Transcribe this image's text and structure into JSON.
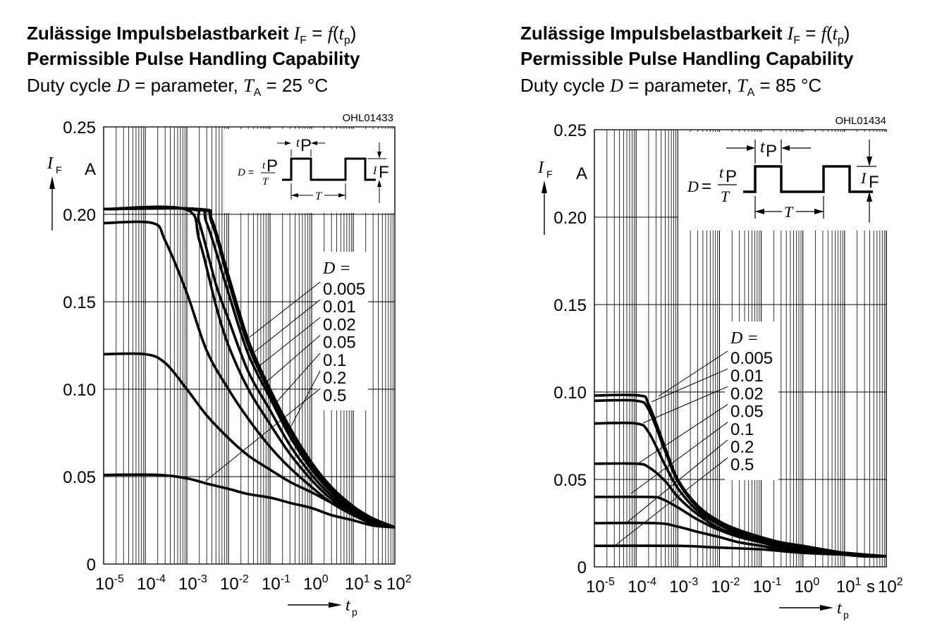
{
  "colors": {
    "line": "#000000",
    "grid": "#000000",
    "background": "#ffffff"
  },
  "charts": [
    {
      "title_de_bold": "Zulässige Impulsbelastbarkeit",
      "title_de_rel": "I",
      "title_de_rel_sub": "F",
      "title_de_eq": " = ",
      "title_de_fn": "f",
      "title_de_arg": "t",
      "title_de_arg_sub": "p",
      "title_en": "Permissible Pulse Handling Capability",
      "cond_prefix": "Duty cycle ",
      "cond_d": "D",
      "cond_mid": " = parameter, ",
      "cond_t": "T",
      "cond_t_sub": "A",
      "cond_value": " = 25 °C",
      "code": "OHL01433",
      "ylabel": "I",
      "ylabel_sub": "F",
      "yunit": "A",
      "xlabel": "t",
      "xlabel_sub": "p",
      "xunit": "s",
      "legend_title": "D =",
      "inset": {
        "d_label": "D",
        "eq": "=",
        "num": "t",
        "num_sub": "P",
        "den": "T",
        "tp": "t",
        "tp_sub": "P",
        "T": "T",
        "if": "I",
        "if_sub": "F"
      }
    },
    {
      "title_de_bold": "Zulässige Impulsbelastbarkeit",
      "title_de_rel": "I",
      "title_de_rel_sub": "F",
      "title_de_eq": " = ",
      "title_de_fn": "f",
      "title_de_arg": "t",
      "title_de_arg_sub": "p",
      "title_en": "Permissible Pulse Handling Capability",
      "cond_prefix": "Duty cycle ",
      "cond_d": "D",
      "cond_mid": " = parameter, ",
      "cond_t": "T",
      "cond_t_sub": "A",
      "cond_value": " = 85 °C",
      "code": "OHL01434",
      "ylabel": "I",
      "ylabel_sub": "F",
      "yunit": "A",
      "xlabel": "t",
      "xlabel_sub": "p",
      "xunit": "s",
      "legend_title": "D =",
      "inset": {
        "d_label": "D",
        "eq": "=",
        "num": "t",
        "num_sub": "P",
        "den": "T",
        "tp": "t",
        "tp_sub": "P",
        "T": "T",
        "if": "I",
        "if_sub": "F"
      }
    }
  ],
  "chart_data": [
    {
      "type": "line",
      "x_scale": "log",
      "xlim": [
        1e-05,
        100
      ],
      "ylim": [
        0,
        0.25
      ],
      "x_ticks": [
        "10-5",
        "10-4",
        "10-3",
        "10-2",
        "10-1",
        "100",
        "101",
        "102"
      ],
      "y_ticks": [
        "0",
        "0.05",
        "0.10",
        "0.15",
        "0.20",
        "0.25"
      ],
      "y_tick_values": [
        0,
        0.05,
        0.1,
        0.15,
        0.2,
        0.25
      ],
      "grid": true,
      "series": [
        {
          "name": "0.005",
          "x": [
            1e-05,
            0.002,
            0.004,
            0.01,
            0.03,
            0.1,
            0.3,
            1,
            3,
            10,
            30,
            100
          ],
          "y": [
            0.203,
            0.203,
            0.197,
            0.165,
            0.128,
            0.1,
            0.078,
            0.058,
            0.044,
            0.033,
            0.026,
            0.021
          ]
        },
        {
          "name": "0.01",
          "x": [
            1e-05,
            0.0018,
            0.004,
            0.01,
            0.03,
            0.1,
            0.3,
            1,
            3,
            10,
            30,
            100
          ],
          "y": [
            0.203,
            0.203,
            0.195,
            0.162,
            0.125,
            0.098,
            0.076,
            0.056,
            0.043,
            0.032,
            0.026,
            0.021
          ]
        },
        {
          "name": "0.02",
          "x": [
            1e-05,
            0.0015,
            0.003,
            0.01,
            0.03,
            0.1,
            0.3,
            1,
            3,
            10,
            30,
            100
          ],
          "y": [
            0.203,
            0.203,
            0.195,
            0.155,
            0.12,
            0.095,
            0.073,
            0.054,
            0.041,
            0.031,
            0.025,
            0.021
          ]
        },
        {
          "name": "0.05",
          "x": [
            1e-05,
            0.0012,
            0.002,
            0.005,
            0.01,
            0.03,
            0.1,
            0.3,
            1,
            3,
            10,
            30,
            100
          ],
          "y": [
            0.203,
            0.203,
            0.195,
            0.16,
            0.14,
            0.11,
            0.088,
            0.068,
            0.051,
            0.039,
            0.03,
            0.024,
            0.021
          ]
        },
        {
          "name": "0.1",
          "x": [
            1e-05,
            0.0009,
            0.002,
            0.005,
            0.01,
            0.03,
            0.1,
            0.3,
            1,
            3,
            10,
            30,
            100
          ],
          "y": [
            0.203,
            0.203,
            0.185,
            0.148,
            0.125,
            0.1,
            0.08,
            0.063,
            0.048,
            0.037,
            0.029,
            0.024,
            0.021
          ]
        },
        {
          "name": "0.2",
          "x": [
            1e-05,
            0.00015,
            0.0003,
            0.001,
            0.003,
            0.01,
            0.03,
            0.1,
            0.3,
            1,
            3,
            10,
            30,
            100
          ],
          "y": [
            0.195,
            0.195,
            0.185,
            0.155,
            0.122,
            0.1,
            0.083,
            0.067,
            0.055,
            0.044,
            0.035,
            0.028,
            0.023,
            0.021
          ]
        },
        {
          "name": "0.5",
          "x": [
            1e-05,
            0.0001,
            0.0003,
            0.001,
            0.003,
            0.01,
            0.03,
            0.1,
            0.3,
            1,
            3,
            10,
            30,
            100
          ],
          "y": [
            0.12,
            0.12,
            0.115,
            0.1,
            0.085,
            0.072,
            0.062,
            0.054,
            0.047,
            0.041,
            0.035,
            0.029,
            0.024,
            0.021
          ]
        },
        {
          "name": "",
          "x": [
            1e-05,
            0.0002,
            0.001,
            0.003,
            0.01,
            0.03,
            0.1,
            0.3,
            1,
            3,
            10,
            30,
            100
          ],
          "y": [
            0.051,
            0.051,
            0.049,
            0.046,
            0.043,
            0.04,
            0.038,
            0.035,
            0.032,
            0.028,
            0.025,
            0.022,
            0.021
          ]
        }
      ]
    },
    {
      "type": "line",
      "x_scale": "log",
      "xlim": [
        1e-05,
        100
      ],
      "ylim": [
        0,
        0.25
      ],
      "x_ticks": [
        "10-5",
        "10-4",
        "10-3",
        "10-2",
        "10-1",
        "100",
        "101",
        "102"
      ],
      "y_ticks": [
        "0",
        "0.05",
        "0.10",
        "0.15",
        "0.20",
        "0.25"
      ],
      "y_tick_values": [
        0,
        0.05,
        0.1,
        0.15,
        0.2,
        0.25
      ],
      "grid": true,
      "series": [
        {
          "name": "0.005",
          "x": [
            1e-05,
            0.00012,
            0.0002,
            0.0005,
            0.001,
            0.003,
            0.01,
            0.03,
            0.1,
            0.3,
            1,
            3,
            10,
            30,
            100
          ],
          "y": [
            0.098,
            0.098,
            0.093,
            0.068,
            0.05,
            0.035,
            0.026,
            0.021,
            0.017,
            0.014,
            0.012,
            0.01,
            0.008,
            0.007,
            0.006
          ]
        },
        {
          "name": "0.01",
          "x": [
            1e-05,
            0.0001,
            0.0002,
            0.0005,
            0.001,
            0.003,
            0.01,
            0.03,
            0.1,
            0.3,
            1,
            3,
            10,
            30,
            100
          ],
          "y": [
            0.095,
            0.095,
            0.09,
            0.066,
            0.049,
            0.034,
            0.025,
            0.02,
            0.016,
            0.013,
            0.011,
            0.009,
            0.008,
            0.007,
            0.006
          ]
        },
        {
          "name": "0.02",
          "x": [
            1e-05,
            0.0001,
            0.0002,
            0.0005,
            0.001,
            0.003,
            0.01,
            0.03,
            0.1,
            0.3,
            1,
            3,
            10,
            30,
            100
          ],
          "y": [
            0.082,
            0.082,
            0.077,
            0.058,
            0.045,
            0.032,
            0.024,
            0.019,
            0.015,
            0.012,
            0.01,
            0.009,
            0.008,
            0.007,
            0.006
          ]
        },
        {
          "name": "0.05",
          "x": [
            1e-05,
            0.0001,
            0.0002,
            0.0005,
            0.001,
            0.003,
            0.01,
            0.03,
            0.1,
            0.3,
            1,
            3,
            10,
            30,
            100
          ],
          "y": [
            0.059,
            0.059,
            0.057,
            0.049,
            0.04,
            0.03,
            0.022,
            0.018,
            0.014,
            0.012,
            0.01,
            0.009,
            0.007,
            0.006,
            0.006
          ]
        },
        {
          "name": "0.1",
          "x": [
            1e-05,
            0.0002,
            0.0004,
            0.001,
            0.003,
            0.01,
            0.03,
            0.1,
            0.3,
            1,
            3,
            10,
            30,
            100
          ],
          "y": [
            0.04,
            0.04,
            0.039,
            0.034,
            0.027,
            0.021,
            0.017,
            0.014,
            0.011,
            0.01,
            0.008,
            0.007,
            0.006,
            0.006
          ]
        },
        {
          "name": "0.2",
          "x": [
            1e-05,
            0.0003,
            0.001,
            0.003,
            0.01,
            0.03,
            0.1,
            0.3,
            1,
            3,
            10,
            30,
            100
          ],
          "y": [
            0.025,
            0.025,
            0.023,
            0.02,
            0.017,
            0.014,
            0.012,
            0.01,
            0.009,
            0.008,
            0.007,
            0.006,
            0.006
          ]
        },
        {
          "name": "0.5",
          "x": [
            1e-05,
            0.001,
            0.01,
            0.1,
            1,
            10,
            100
          ],
          "y": [
            0.012,
            0.012,
            0.011,
            0.01,
            0.008,
            0.007,
            0.006
          ]
        }
      ]
    }
  ]
}
